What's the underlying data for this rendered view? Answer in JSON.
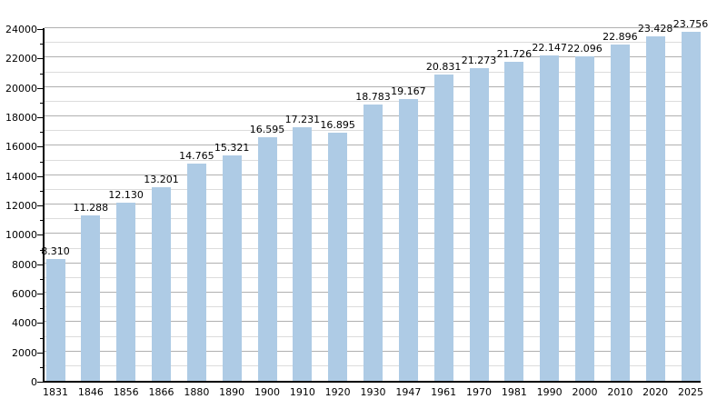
{
  "chart_data": {
    "type": "bar",
    "title": "",
    "xlabel": "",
    "ylabel": "",
    "categories": [
      "1831",
      "1846",
      "1856",
      "1866",
      "1880",
      "1890",
      "1900",
      "1910",
      "1920",
      "1930",
      "1947",
      "1961",
      "1970",
      "1981",
      "1990",
      "2000",
      "2010",
      "2020",
      "2025"
    ],
    "values": [
      8310,
      11288,
      12130,
      13201,
      14765,
      15321,
      16595,
      17231,
      16895,
      18783,
      19167,
      20831,
      21273,
      21726,
      22147,
      22096,
      22896,
      23428,
      23756
    ],
    "value_labels": [
      "8.310",
      "11.288",
      "12.130",
      "13.201",
      "14.765",
      "15.321",
      "16.595",
      "17.231",
      "16.895",
      "18.783",
      "19.167",
      "20.831",
      "21.273",
      "21.726",
      "22.147",
      "22.096",
      "22.896",
      "23.428",
      "23.756"
    ],
    "ylim": [
      0,
      24000
    ],
    "y_major_step": 2000,
    "y_minor_step": 1000,
    "y_tick_labels": [
      "0",
      "2000",
      "4000",
      "6000",
      "8000",
      "10000",
      "12000",
      "14000",
      "16000",
      "18000",
      "20000",
      "22000",
      "24000"
    ],
    "grid": "on",
    "legend": "none",
    "colors": {
      "bar_fill": "#aecbe5",
      "major_gridline": "#b0b0b0",
      "minor_gridline": "#dcdcdc",
      "axis": "#000000",
      "text": "#000000",
      "background": "#ffffff"
    }
  }
}
